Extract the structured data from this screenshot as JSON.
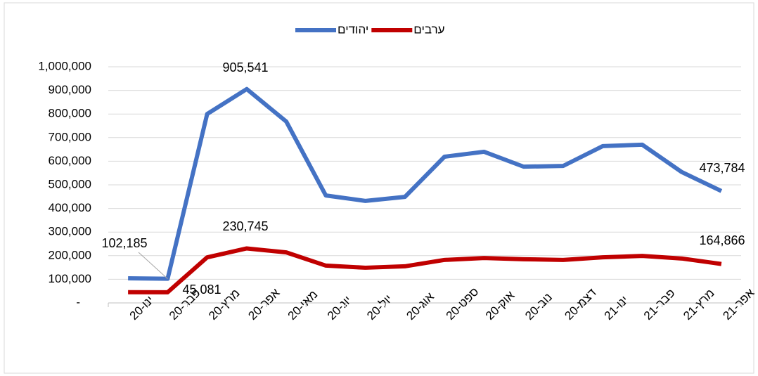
{
  "chart_data": {
    "type": "line",
    "categories": [
      "ינו-20",
      "פבר-20",
      "מרץ-20",
      "אפר-20",
      "מאי-20",
      "יונ-20",
      "יול-20",
      "אוג-20",
      "ספט-20",
      "אוק-20",
      "נוב-20",
      "דצמ-20",
      "ינו-21",
      "פבר-21",
      "מרץ-21",
      "אפר-21"
    ],
    "series": [
      {
        "name": "יהודים",
        "color": "#4472c4",
        "values": [
          104000,
          102185,
          800000,
          905541,
          768000,
          455000,
          432000,
          449000,
          619000,
          640000,
          577000,
          580000,
          664000,
          670000,
          554000,
          473784
        ],
        "value_labels": [
          null,
          "102,185",
          null,
          "905,541",
          null,
          null,
          null,
          null,
          null,
          null,
          null,
          null,
          null,
          null,
          null,
          "473,784"
        ]
      },
      {
        "name": "ערבים",
        "color": "#c00000",
        "values": [
          45500,
          45081,
          193000,
          230745,
          214000,
          158000,
          149000,
          155000,
          182000,
          190000,
          185000,
          182000,
          193000,
          199000,
          188000,
          164866
        ],
        "value_labels": [
          null,
          "45,081",
          null,
          "230,745",
          null,
          null,
          null,
          null,
          null,
          null,
          null,
          null,
          null,
          null,
          null,
          "164,866"
        ]
      }
    ],
    "ylim": [
      0,
      1000000
    ],
    "yticks": [
      {
        "value": 0,
        "label": "-"
      },
      {
        "value": 100000,
        "label": "100,000"
      },
      {
        "value": 200000,
        "label": "200,000"
      },
      {
        "value": 300000,
        "label": "300,000"
      },
      {
        "value": 400000,
        "label": "400,000"
      },
      {
        "value": 500000,
        "label": "500,000"
      },
      {
        "value": 600000,
        "label": "600,000"
      },
      {
        "value": 700000,
        "label": "700,000"
      },
      {
        "value": 800000,
        "label": "800,000"
      },
      {
        "value": 900000,
        "label": "900,000"
      },
      {
        "value": 1000000,
        "label": "1,000,000"
      }
    ],
    "grid": true,
    "legend": "top"
  }
}
